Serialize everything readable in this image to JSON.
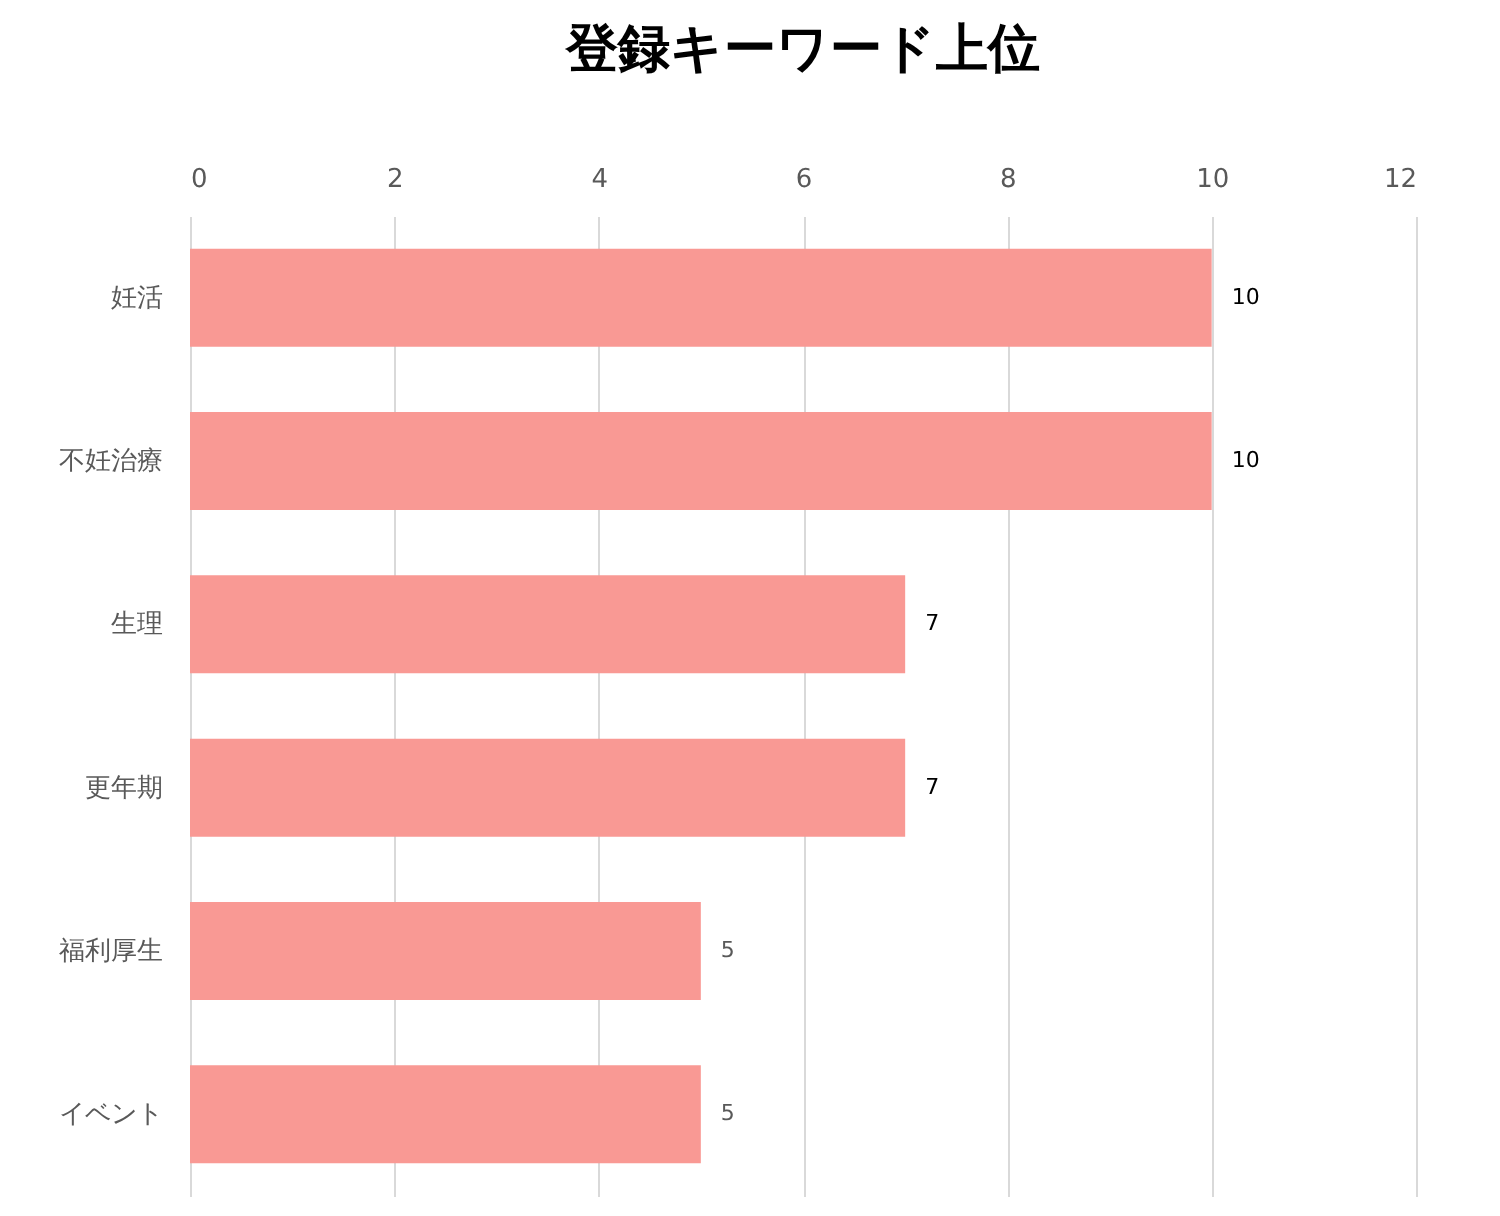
{
  "chart_data": {
    "type": "bar",
    "title": "登録キーワード上位",
    "orientation": "horizontal",
    "categories": [
      "妊活",
      "不妊治療",
      "生理",
      "更年期",
      "福利厚生",
      "イベント"
    ],
    "values": [
      10,
      10,
      7,
      7,
      5,
      5
    ],
    "color": "#f99994",
    "xlim": [
      0,
      12
    ],
    "xticks": [
      0,
      2,
      4,
      6,
      8,
      10,
      12
    ],
    "grid": "x",
    "data_labels": true
  }
}
